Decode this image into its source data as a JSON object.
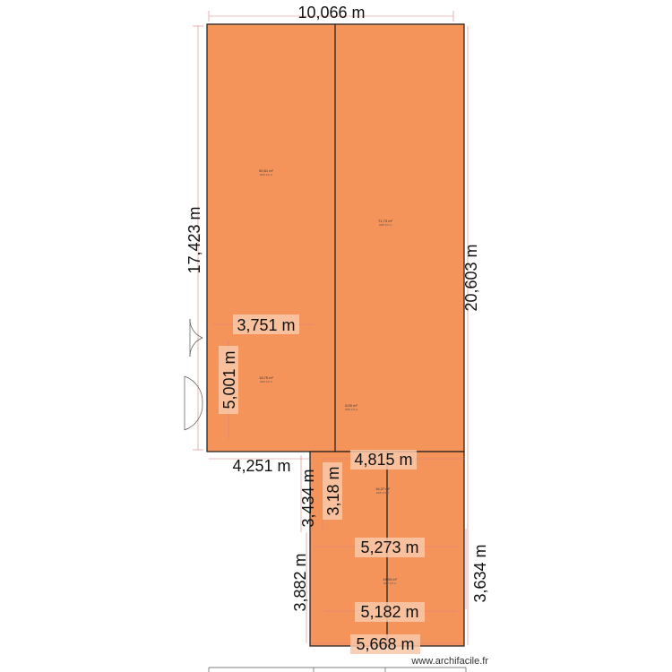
{
  "colors": {
    "room_fill": "#f4935a",
    "wall_stroke": "#1a1a1a",
    "dimension_line": "#d98080",
    "label_background": "#f8c8a8"
  },
  "dimensions": {
    "top_width": "10,066 m",
    "left_height": "17,423 m",
    "right_height": "20,603 m",
    "inner_width_upper": "3,751 m",
    "inner_height_left": "5,001 m",
    "bottom_left_width": "4,251 m",
    "annex_top_width": "4,815 m",
    "annex_left_height": "3,434 m",
    "annex_inner_height": "3,18 m",
    "annex_mid_width": "5,273 m",
    "annex_right_height": "3,634 m",
    "annex_lower_left_height": "3,882 m",
    "annex_lower_width": "5,182 m",
    "annex_bottom_width": "5,668 m"
  },
  "rooms": [
    {
      "area": "50,81 m²",
      "sub": "HSP 2,5 m"
    },
    {
      "area": "71,73 m²",
      "sub": "HSP 2,5 m"
    },
    {
      "area": "18,75 m²",
      "sub": "HSP 2,5 m"
    },
    {
      "area": "8,09 m²",
      "sub": "HSP 2,5 m"
    },
    {
      "area": "16,37 m²",
      "sub": "HSP 2,5 m"
    },
    {
      "area": "19,93 m²",
      "sub": "HSP 2,5 m"
    }
  ],
  "credit": "www.archifacile.fr"
}
